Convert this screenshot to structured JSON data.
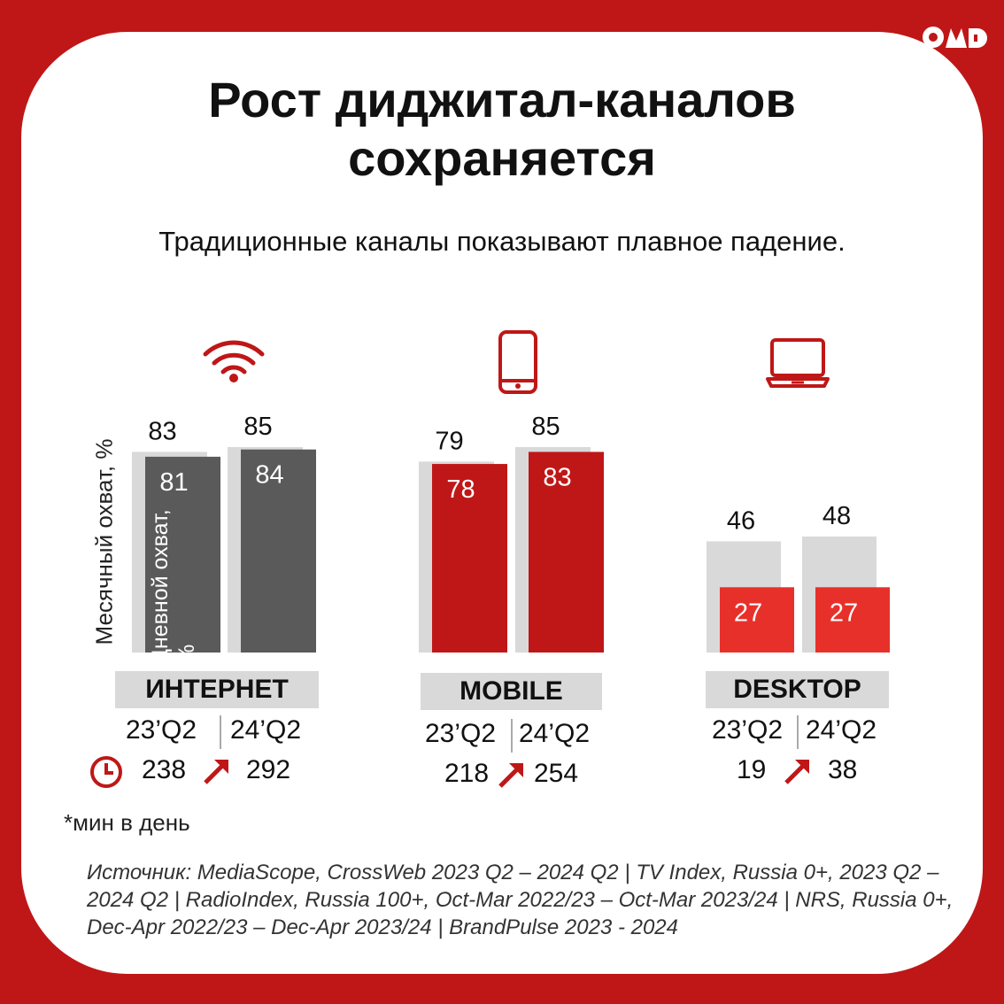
{
  "title_line1": "Рост диджитал-каналов",
  "title_line2": "сохраняется",
  "subtitle": "Традиционные каналы показывают плавное падение.",
  "brand": "ОМД",
  "colors": {
    "brand_red": "#bf1717",
    "monthly_bar": "#d9d9d9",
    "daily_internet": "#5a5a5a",
    "daily_mobile": "#bf1717",
    "daily_desktop": "#e8302a"
  },
  "icons": {
    "internet": "wifi-icon",
    "mobile": "smartphone-icon",
    "desktop": "laptop-icon",
    "time": "clock-icon",
    "growth": "arrow-up-right-icon"
  },
  "chart_data": {
    "type": "bar",
    "ylabel": "Месячный охват, %",
    "inner_label": "Дневной охват, %",
    "periods": [
      "23’Q2",
      "24’Q2"
    ],
    "groups": [
      {
        "category": "ИНТЕРНЕТ",
        "monthly": [
          83,
          85
        ],
        "daily": [
          81,
          84
        ],
        "time": [
          238,
          292
        ]
      },
      {
        "category": "MOBILE",
        "monthly": [
          79,
          85
        ],
        "daily": [
          78,
          83
        ],
        "time": [
          218,
          254
        ]
      },
      {
        "category": "DESKTOP",
        "monthly": [
          46,
          48
        ],
        "daily": [
          27,
          27
        ],
        "time": [
          19,
          38
        ]
      }
    ]
  },
  "footnote": "*мин в день",
  "source": "Источник: MediaScope, CrossWeb 2023 Q2 – 2024 Q2 | TV Index, Russia 0+, 2023 Q2 – 2024 Q2 | RadioIndex, Russia 100+, Oct-Mar 2022/23 – Oct-Mar 2023/24 | NRS, Russia 0+, Dec-Apr 2022/23 – Dec-Apr 2023/24 | BrandPulse 2023 - 2024"
}
